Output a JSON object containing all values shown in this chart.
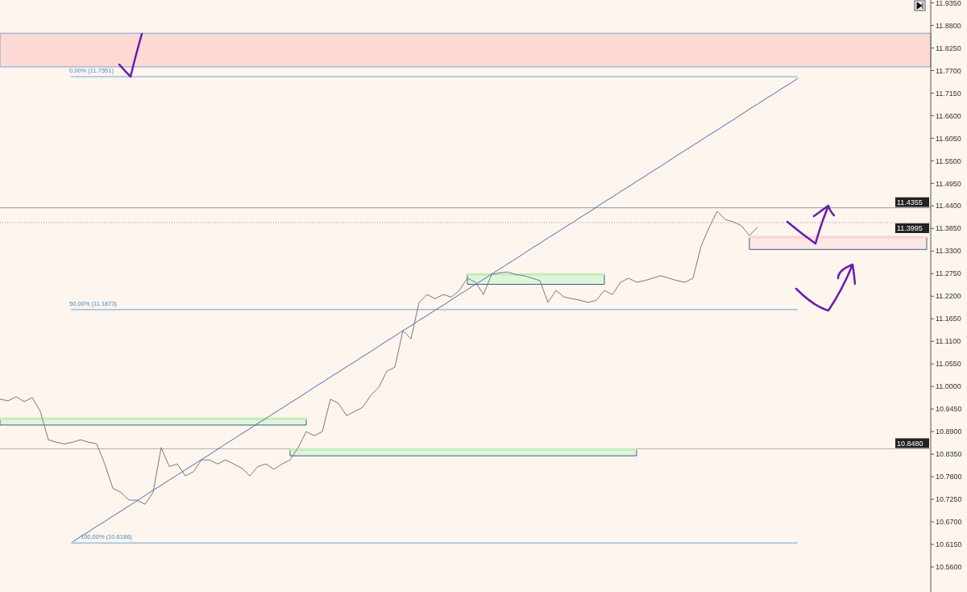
{
  "chart_data": {
    "type": "line",
    "ylim": [
      10.499,
      11.942
    ],
    "categories": [
      null,
      null,
      null,
      null,
      null,
      null,
      null,
      null,
      null,
      null,
      null,
      null,
      null,
      null,
      null,
      null,
      null,
      null,
      null,
      null,
      null,
      null,
      null,
      null,
      null,
      null,
      null,
      null,
      null,
      null,
      null,
      null,
      null,
      null,
      null,
      null,
      null,
      null,
      null,
      null,
      null,
      null,
      null,
      null,
      null,
      null,
      null,
      null,
      null,
      null,
      null,
      null,
      null,
      null,
      null,
      null,
      null,
      null,
      null,
      null,
      null,
      null,
      null,
      null,
      null,
      null,
      null,
      null,
      null,
      null,
      null,
      null,
      null,
      null,
      null,
      null,
      null,
      null,
      null,
      null,
      null,
      null,
      null,
      null,
      null,
      null,
      null,
      null,
      null,
      null,
      null,
      null,
      null,
      null,
      null,
      null,
      null,
      null,
      null,
      null,
      null,
      null,
      null,
      null,
      null,
      null,
      null,
      null,
      null,
      null,
      null,
      null,
      null,
      null,
      null,
      null
    ],
    "yticks": [
      {
        "value": 10.56,
        "label": "10.5600"
      },
      {
        "value": 10.615,
        "label": "10.6150"
      },
      {
        "value": 10.67,
        "label": "10.6700"
      },
      {
        "value": 10.725,
        "label": "10.7250"
      },
      {
        "value": 10.78,
        "label": "10.7800"
      },
      {
        "value": 10.835,
        "label": "10.8350"
      },
      {
        "value": 10.89,
        "label": "10.8900"
      },
      {
        "value": 10.945,
        "label": "10.9450"
      },
      {
        "value": 11.0,
        "label": "11.0000"
      },
      {
        "value": 11.055,
        "label": "11.0550"
      },
      {
        "value": 11.11,
        "label": "11.1100"
      },
      {
        "value": 11.165,
        "label": "11.1650"
      },
      {
        "value": 11.22,
        "label": "11.2200"
      },
      {
        "value": 11.275,
        "label": "11.2750"
      },
      {
        "value": 11.33,
        "label": "11.3300"
      },
      {
        "value": 11.385,
        "label": "11.3850"
      },
      {
        "value": 11.44,
        "label": "11.4400"
      },
      {
        "value": 11.495,
        "label": "11.4950"
      },
      {
        "value": 11.55,
        "label": "11.5500"
      },
      {
        "value": 11.605,
        "label": "11.6050"
      },
      {
        "value": 11.66,
        "label": "11.6600"
      },
      {
        "value": 11.715,
        "label": "11.7150"
      },
      {
        "value": 11.77,
        "label": "11.7700"
      },
      {
        "value": 11.825,
        "label": "11.8250"
      },
      {
        "value": 11.88,
        "label": "11.8800"
      },
      {
        "value": 11.935,
        "label": "11.9350"
      }
    ],
    "tick_labels": "y",
    "series": [
      {
        "color": "#7a7a7a",
        "values": [
          10.969,
          10.965,
          10.975,
          10.963,
          10.973,
          10.939,
          10.87,
          10.864,
          10.86,
          10.864,
          10.87,
          10.864,
          10.86,
          10.811,
          10.752,
          10.742,
          10.723,
          10.723,
          10.713,
          10.742,
          10.851,
          10.805,
          10.811,
          10.782,
          10.792,
          10.821,
          10.821,
          10.811,
          10.821,
          10.811,
          10.801,
          10.782,
          10.805,
          10.811,
          10.798,
          10.811,
          10.821,
          10.851,
          10.89,
          10.88,
          10.89,
          10.969,
          10.959,
          10.929,
          10.939,
          10.949,
          10.978,
          10.998,
          11.037,
          11.047,
          11.136,
          11.116,
          11.205,
          11.224,
          11.214,
          11.224,
          11.218,
          11.234,
          11.264,
          11.254,
          11.224,
          11.273,
          11.277,
          11.279,
          11.273,
          11.27,
          11.264,
          11.258,
          11.205,
          11.234,
          11.218,
          11.214,
          11.21,
          11.205,
          11.21,
          11.234,
          11.224,
          11.254,
          11.264,
          11.254,
          11.258,
          11.264,
          11.27,
          11.264,
          11.258,
          11.254,
          11.264,
          11.342,
          11.388,
          11.427,
          11.407,
          11.401,
          11.392,
          11.368,
          11.388,
          null,
          null,
          null,
          null,
          null,
          null,
          null,
          null,
          null,
          null,
          null,
          null,
          null,
          null,
          null,
          null,
          null,
          null,
          null,
          null,
          null
        ]
      },
      {
        "color": "#4a6fa5",
        "values": [
          null,
          null,
          null,
          null,
          null,
          null,
          null,
          null,
          null,
          10.621,
          10.634,
          10.646,
          10.659,
          10.671,
          10.684,
          10.696,
          10.709,
          10.721,
          10.734,
          10.747,
          10.759,
          10.772,
          10.784,
          10.797,
          10.809,
          10.822,
          10.834,
          10.847,
          10.86,
          10.872,
          10.885,
          10.897,
          10.91,
          10.922,
          10.935,
          10.947,
          10.96,
          10.972,
          10.985,
          10.998,
          11.01,
          11.023,
          11.035,
          11.048,
          11.06,
          11.073,
          11.085,
          11.098,
          11.111,
          11.123,
          11.136,
          11.148,
          11.161,
          11.173,
          11.186,
          11.198,
          11.211,
          11.224,
          11.236,
          11.249,
          11.261,
          11.274,
          11.286,
          11.299,
          11.311,
          11.324,
          11.337,
          11.349,
          11.362,
          11.374,
          11.387,
          11.399,
          11.412,
          11.424,
          11.437,
          11.45,
          11.462,
          11.475,
          11.487,
          11.5,
          11.512,
          11.525,
          11.537,
          11.55,
          11.563,
          11.575,
          11.588,
          11.6,
          11.613,
          11.625,
          11.638,
          11.65,
          11.663,
          11.676,
          11.688,
          11.701,
          11.713,
          11.726,
          11.738,
          11.751,
          null,
          null,
          null,
          null,
          null,
          null,
          null,
          null,
          null,
          null,
          null,
          null,
          null,
          null,
          null,
          null
        ]
      },
      {
        "color": "#c4ecbc",
        "values": [
          10.921,
          10.921,
          10.921,
          10.921,
          10.921,
          10.921,
          10.921,
          10.921,
          10.921,
          10.921,
          10.921,
          10.921,
          10.921,
          10.921,
          10.921,
          10.921,
          10.921,
          10.921,
          10.921,
          10.921,
          10.921,
          10.921,
          10.921,
          10.921,
          10.921,
          10.921,
          10.921,
          10.921,
          10.921,
          10.921,
          10.921,
          10.921,
          10.921,
          10.921,
          10.921,
          10.921,
          10.921,
          10.921,
          10.921,
          null,
          null,
          null,
          null,
          null,
          null,
          null,
          null,
          null,
          null,
          null,
          null,
          null,
          null,
          null,
          null,
          null,
          null,
          null,
          null,
          null,
          null,
          null,
          null,
          null,
          null,
          null,
          null,
          null,
          null,
          null,
          null,
          null,
          null,
          null,
          null,
          null,
          null,
          null,
          null,
          null,
          null,
          null,
          null,
          null,
          null,
          null,
          null,
          null,
          null,
          null,
          null,
          null,
          null,
          null,
          null,
          null,
          null,
          null,
          null,
          null,
          null,
          null,
          null,
          null,
          null,
          null,
          null,
          null,
          null,
          null,
          null,
          null,
          null,
          null,
          null,
          null
        ],
        "lower": [
          10.906,
          10.906,
          10.906,
          10.906,
          10.906,
          10.906,
          10.906,
          10.906,
          10.906,
          10.906,
          10.906,
          10.906,
          10.906,
          10.906,
          10.906,
          10.906,
          10.906,
          10.906,
          10.906,
          10.906,
          10.906,
          10.906,
          10.906,
          10.906,
          10.906,
          10.906,
          10.906,
          10.906,
          10.906,
          10.906,
          10.906,
          10.906,
          10.906,
          10.906,
          10.906,
          10.906,
          10.906,
          10.906,
          10.906,
          null,
          null,
          null,
          null,
          null,
          null,
          null,
          null,
          null,
          null,
          null,
          null,
          null,
          null,
          null,
          null,
          null,
          null,
          null,
          null,
          null,
          null,
          null,
          null,
          null,
          null,
          null,
          null,
          null,
          null,
          null,
          null,
          null,
          null,
          null,
          null,
          null,
          null,
          null,
          null,
          null,
          null,
          null,
          null,
          null,
          null,
          null,
          null,
          null,
          null,
          null,
          null,
          null,
          null,
          null,
          null,
          null,
          null,
          null,
          null,
          null,
          null,
          null,
          null,
          null,
          null,
          null,
          null,
          null,
          null,
          null,
          null,
          null,
          null,
          null,
          null,
          null
        ],
        "upper": [
          10.921,
          10.921,
          10.921,
          10.921,
          10.921,
          10.921,
          10.921,
          10.921,
          10.921,
          10.921,
          10.921,
          10.921,
          10.921,
          10.921,
          10.921,
          10.921,
          10.921,
          10.921,
          10.921,
          10.921,
          10.921,
          10.921,
          10.921,
          10.921,
          10.921,
          10.921,
          10.921,
          10.921,
          10.921,
          10.921,
          10.921,
          10.921,
          10.921,
          10.921,
          10.921,
          10.921,
          10.921,
          10.921,
          10.921,
          null,
          null,
          null,
          null,
          null,
          null,
          null,
          null,
          null,
          null,
          null,
          null,
          null,
          null,
          null,
          null,
          null,
          null,
          null,
          null,
          null,
          null,
          null,
          null,
          null,
          null,
          null,
          null,
          null,
          null,
          null,
          null,
          null,
          null,
          null,
          null,
          null,
          null,
          null,
          null,
          null,
          null,
          null,
          null,
          null,
          null,
          null,
          null,
          null,
          null,
          null,
          null,
          null,
          null,
          null,
          null,
          null,
          null,
          null,
          null,
          null,
          null,
          null,
          null,
          null,
          null,
          null,
          null,
          null,
          null,
          null,
          null,
          null,
          null,
          null,
          null,
          null
        ]
      },
      {
        "color": "#c4ecbc",
        "values": [
          null,
          null,
          null,
          null,
          null,
          null,
          null,
          null,
          null,
          null,
          null,
          null,
          null,
          null,
          null,
          null,
          null,
          null,
          null,
          null,
          null,
          null,
          null,
          null,
          null,
          null,
          null,
          null,
          null,
          null,
          null,
          null,
          null,
          null,
          null,
          null,
          10.846,
          10.846,
          10.846,
          10.846,
          10.846,
          10.846,
          10.846,
          10.846,
          10.846,
          10.846,
          10.846,
          10.846,
          10.846,
          10.846,
          10.846,
          10.846,
          10.846,
          10.846,
          10.846,
          10.846,
          10.846,
          10.846,
          10.846,
          10.846,
          10.846,
          10.846,
          10.846,
          10.846,
          10.846,
          10.846,
          10.846,
          10.846,
          10.846,
          10.846,
          10.846,
          10.846,
          10.846,
          10.846,
          10.846,
          10.846,
          10.846,
          10.846,
          10.846,
          10.846,
          null,
          null,
          null,
          null,
          null,
          null,
          null,
          null,
          null,
          null,
          null,
          null,
          null,
          null,
          null,
          null,
          null,
          null,
          null,
          null,
          null,
          null,
          null,
          null,
          null,
          null,
          null,
          null,
          null,
          null,
          null,
          null,
          null,
          null,
          null,
          null
        ],
        "lower": [
          null,
          null,
          null,
          null,
          null,
          null,
          null,
          null,
          null,
          null,
          null,
          null,
          null,
          null,
          null,
          null,
          null,
          null,
          null,
          null,
          null,
          null,
          null,
          null,
          null,
          null,
          null,
          null,
          null,
          null,
          null,
          null,
          null,
          null,
          null,
          null,
          10.831,
          10.831,
          10.831,
          10.831,
          10.831,
          10.831,
          10.831,
          10.831,
          10.831,
          10.831,
          10.831,
          10.831,
          10.831,
          10.831,
          10.831,
          10.831,
          10.831,
          10.831,
          10.831,
          10.831,
          10.831,
          10.831,
          10.831,
          10.831,
          10.831,
          10.831,
          10.831,
          10.831,
          10.831,
          10.831,
          10.831,
          10.831,
          10.831,
          10.831,
          10.831,
          10.831,
          10.831,
          10.831,
          10.831,
          10.831,
          10.831,
          10.831,
          10.831,
          10.831,
          null,
          null,
          null,
          null,
          null,
          null,
          null,
          null,
          null,
          null,
          null,
          null,
          null,
          null,
          null,
          null,
          null,
          null,
          null,
          null,
          null,
          null,
          null,
          null,
          null,
          null,
          null,
          null,
          null,
          null,
          null,
          null,
          null,
          null,
          null,
          null
        ],
        "upper": [
          null,
          null,
          null,
          null,
          null,
          null,
          null,
          null,
          null,
          null,
          null,
          null,
          null,
          null,
          null,
          null,
          null,
          null,
          null,
          null,
          null,
          null,
          null,
          null,
          null,
          null,
          null,
          null,
          null,
          null,
          null,
          null,
          null,
          null,
          null,
          null,
          10.846,
          10.846,
          10.846,
          10.846,
          10.846,
          10.846,
          10.846,
          10.846,
          10.846,
          10.846,
          10.846,
          10.846,
          10.846,
          10.846,
          10.846,
          10.846,
          10.846,
          10.846,
          10.846,
          10.846,
          10.846,
          10.846,
          10.846,
          10.846,
          10.846,
          10.846,
          10.846,
          10.846,
          10.846,
          10.846,
          10.846,
          10.846,
          10.846,
          10.846,
          10.846,
          10.846,
          10.846,
          10.846,
          10.846,
          10.846,
          10.846,
          10.846,
          10.846,
          10.846,
          null,
          null,
          null,
          null,
          null,
          null,
          null,
          null,
          null,
          null,
          null,
          null,
          null,
          null,
          null,
          null,
          null,
          null,
          null,
          null,
          null,
          null,
          null,
          null,
          null,
          null,
          null,
          null,
          null,
          null,
          null,
          null,
          null,
          null,
          null,
          null
        ]
      },
      {
        "color": "#c4ecbc",
        "values": [
          null,
          null,
          null,
          null,
          null,
          null,
          null,
          null,
          null,
          null,
          null,
          null,
          null,
          null,
          null,
          null,
          null,
          null,
          null,
          null,
          null,
          null,
          null,
          null,
          null,
          null,
          null,
          null,
          null,
          null,
          null,
          null,
          null,
          null,
          null,
          null,
          null,
          null,
          null,
          null,
          null,
          null,
          null,
          null,
          null,
          null,
          null,
          null,
          null,
          null,
          null,
          null,
          null,
          null,
          null,
          null,
          null,
          null,
          11.273,
          11.273,
          11.273,
          11.273,
          11.273,
          11.273,
          11.273,
          11.273,
          11.273,
          11.273,
          11.273,
          11.273,
          11.273,
          11.273,
          11.273,
          11.273,
          11.273,
          11.273,
          null,
          null,
          null,
          null,
          null,
          null,
          null,
          null,
          null,
          null,
          null,
          null,
          null,
          null,
          null,
          null,
          null,
          null,
          null,
          null,
          null,
          null,
          null,
          null,
          null,
          null,
          null,
          null,
          null,
          null,
          null,
          null,
          null,
          null,
          null,
          null,
          null,
          null,
          null,
          null
        ],
        "lower": [
          null,
          null,
          null,
          null,
          null,
          null,
          null,
          null,
          null,
          null,
          null,
          null,
          null,
          null,
          null,
          null,
          null,
          null,
          null,
          null,
          null,
          null,
          null,
          null,
          null,
          null,
          null,
          null,
          null,
          null,
          null,
          null,
          null,
          null,
          null,
          null,
          null,
          null,
          null,
          null,
          null,
          null,
          null,
          null,
          null,
          null,
          null,
          null,
          null,
          null,
          null,
          null,
          null,
          null,
          null,
          null,
          null,
          null,
          11.249,
          11.249,
          11.249,
          11.249,
          11.249,
          11.249,
          11.249,
          11.249,
          11.249,
          11.249,
          11.249,
          11.249,
          11.249,
          11.249,
          11.249,
          11.249,
          11.249,
          11.249,
          null,
          null,
          null,
          null,
          null,
          null,
          null,
          null,
          null,
          null,
          null,
          null,
          null,
          null,
          null,
          null,
          null,
          null,
          null,
          null,
          null,
          null,
          null,
          null,
          null,
          null,
          null,
          null,
          null,
          null,
          null,
          null,
          null,
          null,
          null,
          null,
          null,
          null,
          null,
          null
        ],
        "upper": [
          null,
          null,
          null,
          null,
          null,
          null,
          null,
          null,
          null,
          null,
          null,
          null,
          null,
          null,
          null,
          null,
          null,
          null,
          null,
          null,
          null,
          null,
          null,
          null,
          null,
          null,
          null,
          null,
          null,
          null,
          null,
          null,
          null,
          null,
          null,
          null,
          null,
          null,
          null,
          null,
          null,
          null,
          null,
          null,
          null,
          null,
          null,
          null,
          null,
          null,
          null,
          null,
          null,
          null,
          null,
          null,
          null,
          null,
          11.273,
          11.273,
          11.273,
          11.273,
          11.273,
          11.273,
          11.273,
          11.273,
          11.273,
          11.273,
          11.273,
          11.273,
          11.273,
          11.273,
          11.273,
          11.273,
          11.273,
          11.273,
          null,
          null,
          null,
          null,
          null,
          null,
          null,
          null,
          null,
          null,
          null,
          null,
          null,
          null,
          null,
          null,
          null,
          null,
          null,
          null,
          null,
          null,
          null,
          null,
          null,
          null,
          null,
          null,
          null,
          null,
          null,
          null,
          null,
          null,
          null,
          null,
          null,
          null,
          null,
          null
        ]
      },
      {
        "color": "#fad4d0",
        "values": [
          null,
          null,
          null,
          null,
          null,
          null,
          null,
          null,
          null,
          null,
          null,
          null,
          null,
          null,
          null,
          null,
          null,
          null,
          null,
          null,
          null,
          null,
          null,
          null,
          null,
          null,
          null,
          null,
          null,
          null,
          null,
          null,
          null,
          null,
          null,
          null,
          null,
          null,
          null,
          null,
          null,
          null,
          null,
          null,
          null,
          null,
          null,
          null,
          null,
          null,
          null,
          null,
          null,
          null,
          null,
          null,
          null,
          null,
          null,
          null,
          null,
          null,
          null,
          null,
          null,
          null,
          null,
          null,
          null,
          null,
          null,
          null,
          null,
          null,
          null,
          null,
          null,
          null,
          null,
          null,
          null,
          null,
          null,
          null,
          null,
          null,
          null,
          null,
          null,
          null,
          null,
          null,
          null,
          11.364,
          11.364,
          11.364,
          11.364,
          11.364,
          11.364,
          11.364,
          11.364,
          11.364,
          11.364,
          11.364,
          11.364,
          11.364,
          11.364,
          11.364,
          11.364,
          11.364,
          11.364,
          11.364,
          11.364,
          11.364,
          11.364,
          11.364
        ],
        "lower": [
          null,
          null,
          null,
          null,
          null,
          null,
          null,
          null,
          null,
          null,
          null,
          null,
          null,
          null,
          null,
          null,
          null,
          null,
          null,
          null,
          null,
          null,
          null,
          null,
          null,
          null,
          null,
          null,
          null,
          null,
          null,
          null,
          null,
          null,
          null,
          null,
          null,
          null,
          null,
          null,
          null,
          null,
          null,
          null,
          null,
          null,
          null,
          null,
          null,
          null,
          null,
          null,
          null,
          null,
          null,
          null,
          null,
          null,
          null,
          null,
          null,
          null,
          null,
          null,
          null,
          null,
          null,
          null,
          null,
          null,
          null,
          null,
          null,
          null,
          null,
          null,
          null,
          null,
          null,
          null,
          null,
          null,
          null,
          null,
          null,
          null,
          null,
          null,
          null,
          null,
          null,
          null,
          null,
          11.334,
          11.334,
          11.334,
          11.334,
          11.334,
          11.334,
          11.334,
          11.334,
          11.334,
          11.334,
          11.334,
          11.334,
          11.334,
          11.334,
          11.334,
          11.334,
          11.334,
          11.334,
          11.334,
          11.334,
          11.334,
          11.334,
          11.334
        ],
        "upper": [
          null,
          null,
          null,
          null,
          null,
          null,
          null,
          null,
          null,
          null,
          null,
          null,
          null,
          null,
          null,
          null,
          null,
          null,
          null,
          null,
          null,
          null,
          null,
          null,
          null,
          null,
          null,
          null,
          null,
          null,
          null,
          null,
          null,
          null,
          null,
          null,
          null,
          null,
          null,
          null,
          null,
          null,
          null,
          null,
          null,
          null,
          null,
          null,
          null,
          null,
          null,
          null,
          null,
          null,
          null,
          null,
          null,
          null,
          null,
          null,
          null,
          null,
          null,
          null,
          null,
          null,
          null,
          null,
          null,
          null,
          null,
          null,
          null,
          null,
          null,
          null,
          null,
          null,
          null,
          null,
          null,
          null,
          null,
          null,
          null,
          null,
          null,
          null,
          null,
          null,
          null,
          null,
          null,
          11.364,
          11.364,
          11.364,
          11.364,
          11.364,
          11.364,
          11.364,
          11.364,
          11.364,
          11.364,
          11.364,
          11.364,
          11.364,
          11.364,
          11.364,
          11.364,
          11.364,
          11.364,
          11.364,
          11.364,
          11.364,
          11.364,
          11.364
        ]
      }
    ],
    "bands": [
      {
        "axis": "y",
        "from": 11.779,
        "to": 11.861,
        "label": null,
        "color": "#fdd9d3"
      }
    ],
    "ref_lines": [
      {
        "axis": "y",
        "value": 11.7551,
        "label": "0,00% (11.7551)",
        "color": "#6aa6d6"
      },
      {
        "axis": "y",
        "value": 11.1873,
        "label": "50,00% (11.1873)",
        "color": "#6aa6d6"
      },
      {
        "axis": "y",
        "value": 10.6186,
        "label": "100,00% (10.6186)",
        "color": "#6aa6d6"
      },
      {
        "axis": "y",
        "value": 11.4355,
        "label": "11.4355",
        "color": "#9a9a9a"
      },
      {
        "axis": "y",
        "value": 11.3995,
        "label": "11.3995",
        "color": "#9a9a9a",
        "line_style": "dotted"
      },
      {
        "axis": "y",
        "value": 10.848,
        "label": "10.8480",
        "color": "#b0b0b0"
      }
    ]
  }
}
